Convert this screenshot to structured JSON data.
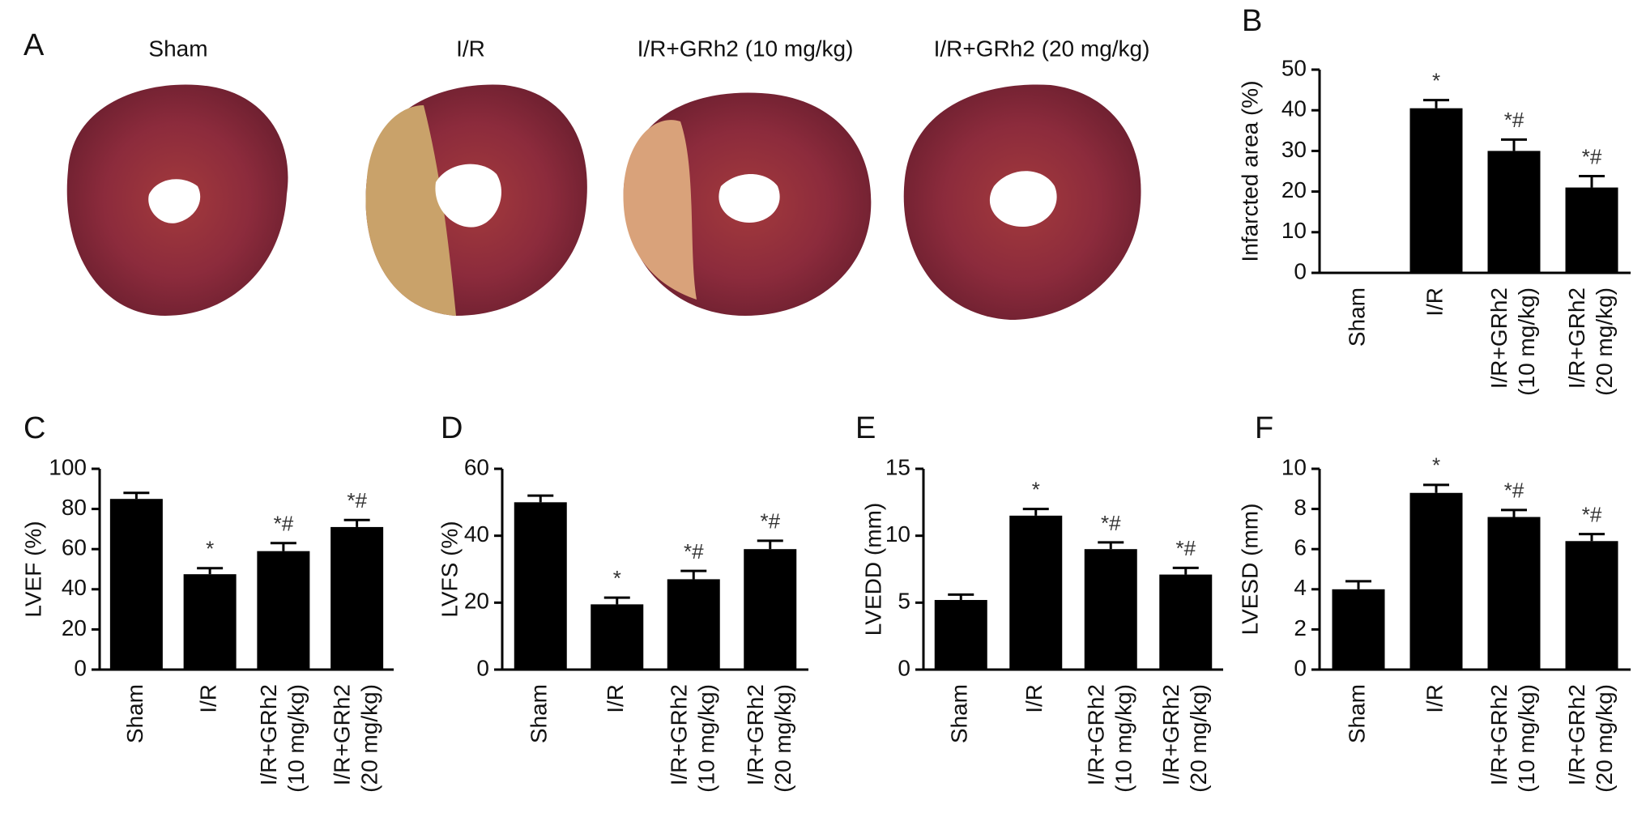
{
  "photo_panel": {
    "label": "A",
    "groups": [
      "Sham",
      "I/R",
      "I/R+GRh2 (10 mg/kg)",
      "I/R+GRh2 (20 mg/kg)"
    ]
  },
  "chart_data": [
    {
      "type": "bar",
      "panel_label": "B",
      "y_label": "Infarcted area (%)",
      "categories": [
        "Sham",
        "I/R",
        "I/R+GRh2 (10 mg/kg)",
        "I/R+GRh2 (20 mg/kg)"
      ],
      "values": [
        0,
        40.5,
        30,
        21
      ],
      "errors": [
        0,
        2,
        2.8,
        2.8
      ],
      "annotations": [
        null,
        "*",
        "*#",
        "*#"
      ],
      "color": "#000000",
      "ylim": [
        0,
        50
      ],
      "yticks": [
        0,
        10,
        20,
        30,
        40,
        50
      ]
    },
    {
      "type": "bar",
      "panel_label": "C",
      "y_label": "LVEF (%)",
      "categories": [
        "Sham",
        "I/R",
        "I/R+GRh2 (10 mg/kg)",
        "I/R+GRh2 (20 mg/kg)"
      ],
      "values": [
        85,
        47.5,
        59,
        71
      ],
      "errors": [
        3,
        3,
        4,
        3.5
      ],
      "annotations": [
        null,
        "*",
        "*#",
        "*#"
      ],
      "color": "#000000",
      "ylim": [
        0,
        100
      ],
      "yticks": [
        0,
        20,
        40,
        60,
        80,
        100
      ]
    },
    {
      "type": "bar",
      "panel_label": "D",
      "y_label": "LVFS (%)",
      "categories": [
        "Sham",
        "I/R",
        "I/R+GRh2 (10 mg/kg)",
        "I/R+GRh2 (20 mg/kg)"
      ],
      "values": [
        50,
        19.5,
        27,
        36
      ],
      "errors": [
        2,
        2,
        2.5,
        2.5
      ],
      "annotations": [
        null,
        "*",
        "*#",
        "*#"
      ],
      "color": "#000000",
      "ylim": [
        0,
        60
      ],
      "yticks": [
        0,
        20,
        40,
        60
      ]
    },
    {
      "type": "bar",
      "panel_label": "E",
      "y_label": "LVEDD (mm)",
      "categories": [
        "Sham",
        "I/R",
        "I/R+GRh2 (10 mg/kg)",
        "I/R+GRh2 (20 mg/kg)"
      ],
      "values": [
        5.2,
        11.5,
        9,
        7.1
      ],
      "errors": [
        0.4,
        0.5,
        0.5,
        0.5
      ],
      "annotations": [
        null,
        "*",
        "*#",
        "*#"
      ],
      "color": "#000000",
      "ylim": [
        0,
        15
      ],
      "yticks": [
        0,
        5,
        10,
        15
      ]
    },
    {
      "type": "bar",
      "panel_label": "F",
      "y_label": "LVESD (mm)",
      "categories": [
        "Sham",
        "I/R",
        "I/R+GRh2 (10 mg/kg)",
        "I/R+GRh2 (20 mg/kg)"
      ],
      "values": [
        4,
        8.8,
        7.6,
        6.4
      ],
      "errors": [
        0.4,
        0.4,
        0.35,
        0.35
      ],
      "annotations": [
        null,
        "*",
        "*#",
        "*#"
      ],
      "color": "#000000",
      "ylim": [
        0,
        10
      ],
      "yticks": [
        0,
        2,
        4,
        6,
        8,
        10
      ]
    }
  ]
}
